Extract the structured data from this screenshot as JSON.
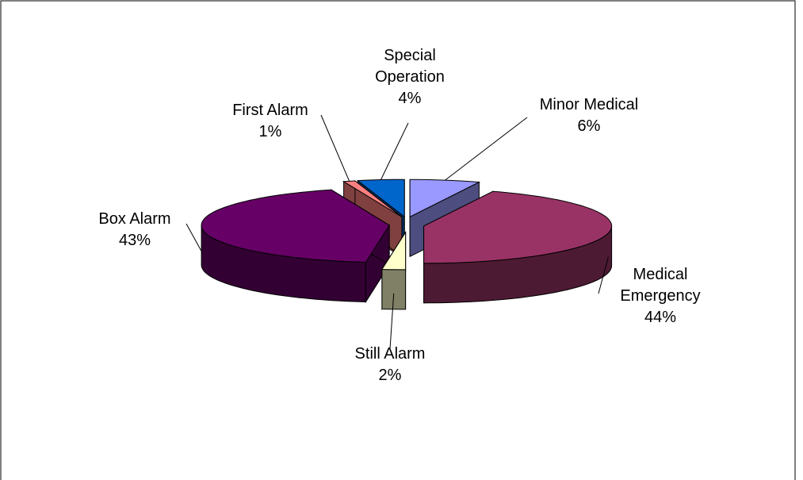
{
  "chart_data": {
    "type": "pie",
    "categories": [
      "Minor Medical",
      "Medical Emergency",
      "Still Alarm",
      "Box Alarm",
      "First Alarm",
      "Special Operation"
    ],
    "values": [
      6,
      44,
      2,
      43,
      1,
      4
    ],
    "value_labels": [
      "6%",
      "44%",
      "2%",
      "43%",
      "1%",
      "4%"
    ],
    "colors": [
      "#9999ff",
      "#993366",
      "#ffffcc",
      "#660066",
      "#ff8080",
      "#0066cc"
    ]
  }
}
